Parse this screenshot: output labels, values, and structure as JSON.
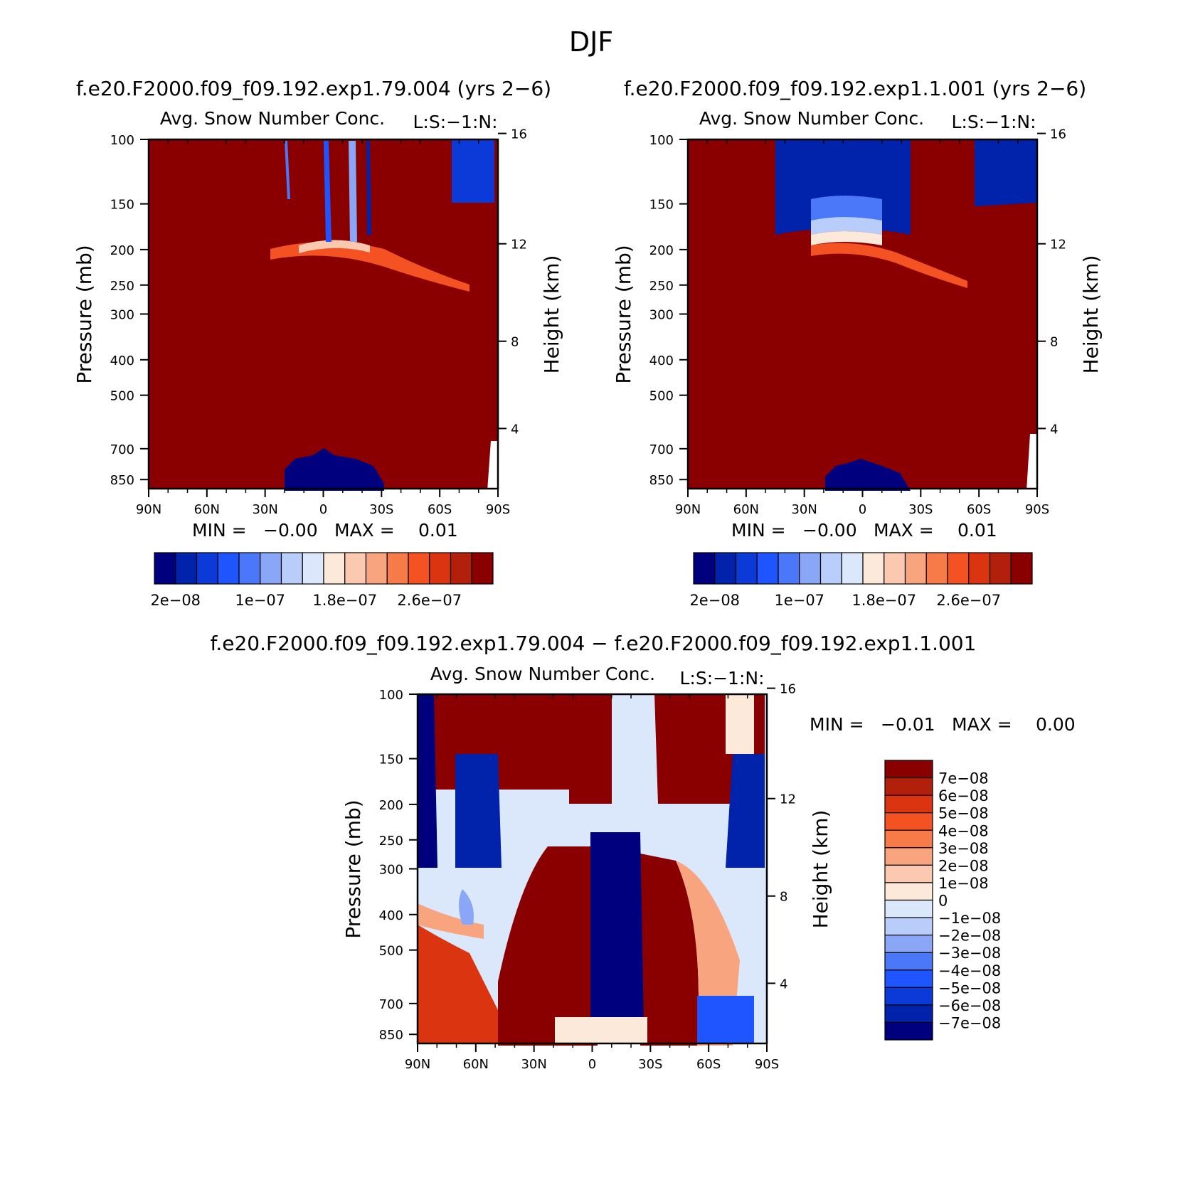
{
  "figure_title": "DJF",
  "colors": {
    "pos_scale": [
      "#00007f",
      "#0122aa",
      "#0b3ad8",
      "#1f55ff",
      "#4a78f8",
      "#8aa6f6",
      "#b9cdfb",
      "#dbe8fb",
      "#fde9d9",
      "#fbc8b0",
      "#f8a47f",
      "#f77a49",
      "#f45222",
      "#db3410",
      "#b21f0a",
      "#8a0000"
    ],
    "diff_scale": [
      "#00007f",
      "#0122aa",
      "#0b3ad8",
      "#1f55ff",
      "#4a78f8",
      "#8aa6f6",
      "#b9cdfb",
      "#dbe8fb",
      "#fde9d9",
      "#fbc8b0",
      "#f8a47f",
      "#f77a49",
      "#f45222",
      "#db3410",
      "#b21f0a",
      "#8a0000"
    ]
  },
  "chart_data": [
    {
      "type": "heatmap",
      "case_title": "f.e20.F2000.f09_f09.192.exp1.79.004 (yrs 2−6)",
      "title": "Avg. Snow Number Conc.",
      "units_label": "L:S:−1:N:",
      "xlabel": "",
      "ylabel": "Pressure (mb)",
      "ylabel_right": "Height (km)",
      "x_ticks": [
        "90N",
        "60N",
        "30N",
        "0",
        "30S",
        "60S",
        "90S"
      ],
      "y_ticks": [
        "100",
        "150",
        "200",
        "250",
        "300",
        "400",
        "500",
        "700",
        "850"
      ],
      "y_right_ticks": [
        "16",
        "12",
        "8",
        "4"
      ],
      "min_label": "MIN =",
      "min_value": "−0.00",
      "max_label": "MAX =",
      "max_value": "0.01",
      "colorbar_labels": [
        "2e−08",
        "1e−07",
        "1.8e−07",
        "2.6e−07"
      ]
    },
    {
      "type": "heatmap",
      "case_title": "f.e20.F2000.f09_f09.192.exp1.1.001 (yrs 2−6)",
      "title": "Avg. Snow Number Conc.",
      "units_label": "L:S:−1:N:",
      "xlabel": "",
      "ylabel": "Pressure (mb)",
      "ylabel_right": "Height (km)",
      "x_ticks": [
        "90N",
        "60N",
        "30N",
        "0",
        "30S",
        "60S",
        "90S"
      ],
      "y_ticks": [
        "100",
        "150",
        "200",
        "250",
        "300",
        "400",
        "500",
        "700",
        "850"
      ],
      "y_right_ticks": [
        "16",
        "12",
        "8",
        "4"
      ],
      "min_label": "MIN =",
      "min_value": "−0.00",
      "max_label": "MAX =",
      "max_value": "0.01",
      "colorbar_labels": [
        "2e−08",
        "1e−07",
        "1.8e−07",
        "2.6e−07"
      ]
    },
    {
      "type": "heatmap",
      "case_title": "f.e20.F2000.f09_f09.192.exp1.79.004 − f.e20.F2000.f09_f09.192.exp1.1.001",
      "title": "Avg. Snow Number Conc.",
      "units_label": "L:S:−1:N:",
      "xlabel": "",
      "ylabel": "Pressure (mb)",
      "ylabel_right": "Height (km)",
      "x_ticks": [
        "90N",
        "60N",
        "30N",
        "0",
        "30S",
        "60S",
        "90S"
      ],
      "y_ticks": [
        "100",
        "150",
        "200",
        "250",
        "300",
        "400",
        "500",
        "700",
        "850"
      ],
      "y_right_ticks": [
        "16",
        "12",
        "8",
        "4"
      ],
      "min_label": "MIN =",
      "min_value": "−0.01",
      "max_label": "MAX =",
      "max_value": "0.00",
      "colorbar_labels": [
        "7e−08",
        "6e−08",
        "5e−08",
        "4e−08",
        "3e−08",
        "2e−08",
        "1e−08",
        "0",
        "−1e−08",
        "−2e−08",
        "−3e−08",
        "−4e−08",
        "−5e−08",
        "−6e−08",
        "−7e−08"
      ]
    }
  ]
}
